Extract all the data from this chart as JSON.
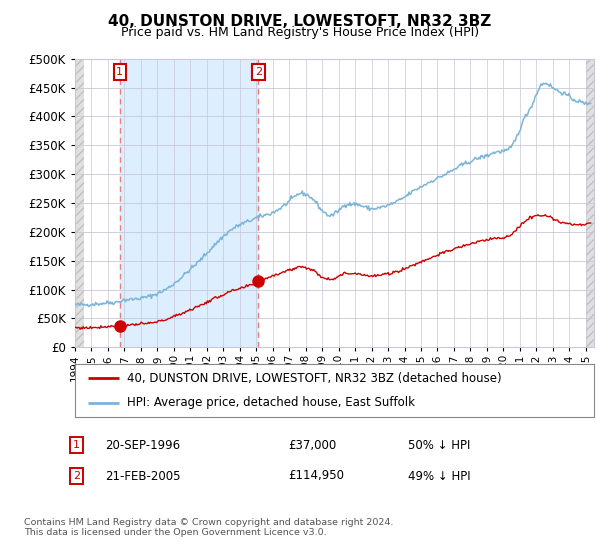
{
  "title": "40, DUNSTON DRIVE, LOWESTOFT, NR32 3BZ",
  "subtitle": "Price paid vs. HM Land Registry's House Price Index (HPI)",
  "footer": "Contains HM Land Registry data © Crown copyright and database right 2024.\nThis data is licensed under the Open Government Licence v3.0.",
  "legend_line1": "40, DUNSTON DRIVE, LOWESTOFT, NR32 3BZ (detached house)",
  "legend_line2": "HPI: Average price, detached house, East Suffolk",
  "annotation1": {
    "label": "1",
    "date_x": 1996.72,
    "price": 37000,
    "text_date": "20-SEP-1996",
    "text_price": "£37,000",
    "text_pct": "50% ↓ HPI"
  },
  "annotation2": {
    "label": "2",
    "date_x": 2005.13,
    "price": 114950,
    "text_date": "21-FEB-2005",
    "text_price": "£114,950",
    "text_pct": "49% ↓ HPI"
  },
  "vline1_x": 1996.72,
  "vline2_x": 2005.13,
  "shade_start": 1996.72,
  "shade_end": 2005.13,
  "xmin": 1994.0,
  "xmax": 2025.5,
  "ymin": 0,
  "ymax": 500000,
  "yticks": [
    0,
    50000,
    100000,
    150000,
    200000,
    250000,
    300000,
    350000,
    400000,
    450000,
    500000
  ],
  "hpi_color": "#7ab4d8",
  "price_color": "#cc0000",
  "shade_color": "#ddeeff",
  "hatch_color": "#dddddd",
  "background_color": "#ffffff",
  "grid_color": "#c8c8d8",
  "title_fontsize": 11,
  "subtitle_fontsize": 9
}
